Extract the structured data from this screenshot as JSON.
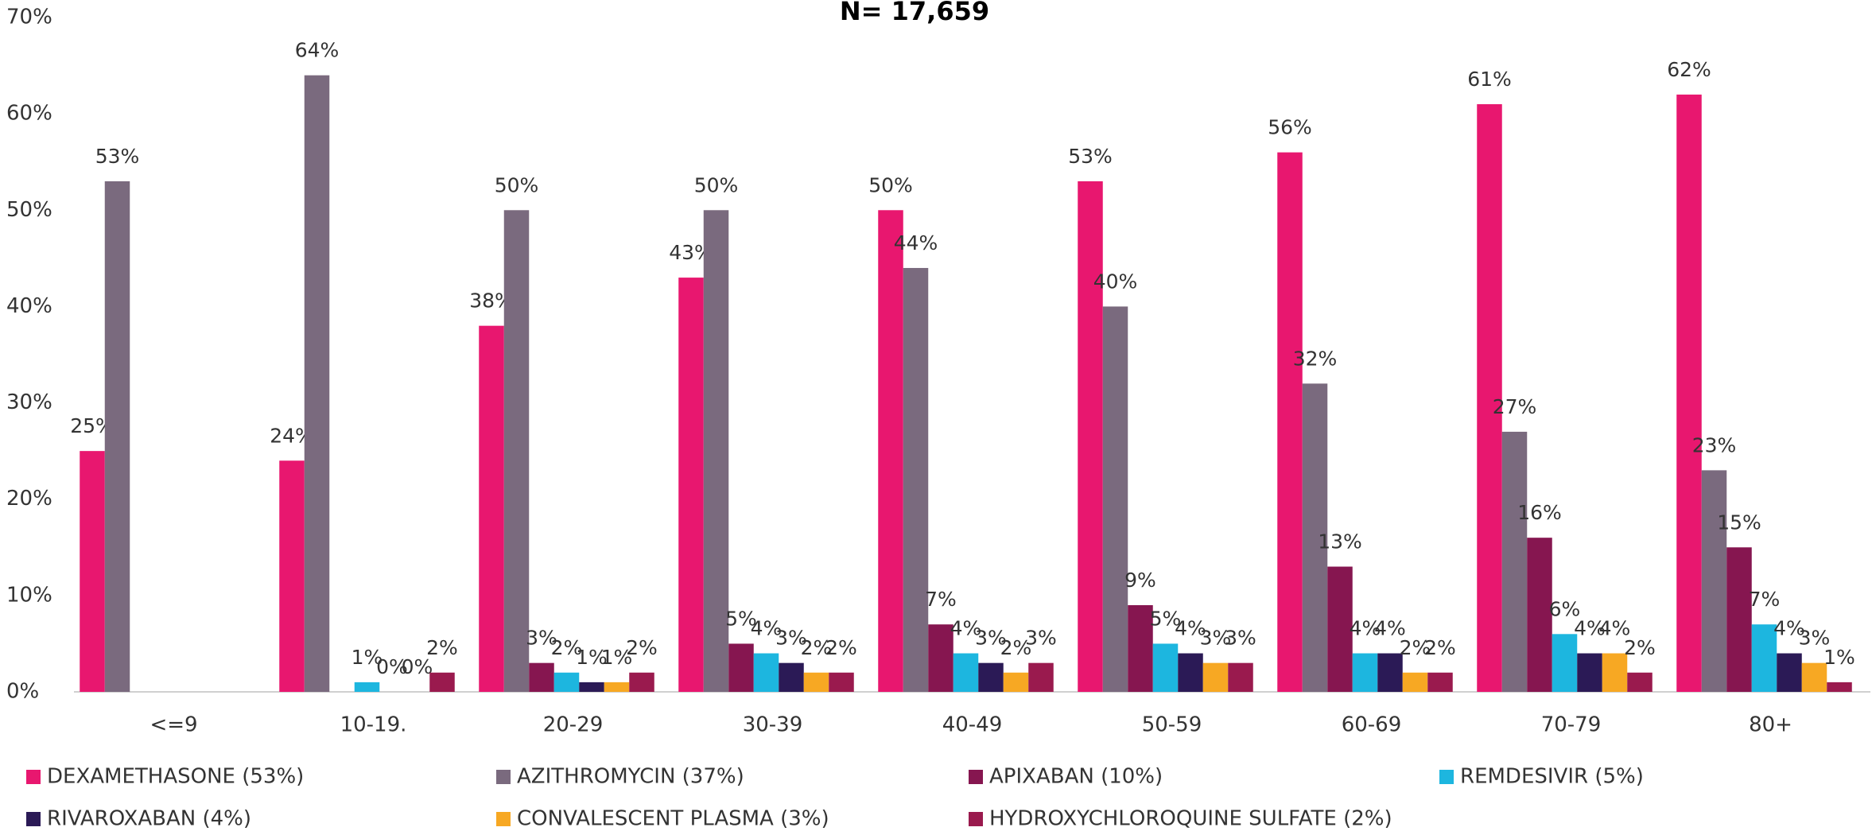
{
  "chart_data": {
    "type": "bar",
    "title": "N= 17,659",
    "categories": [
      "<=9",
      "10-19.",
      "20-29",
      "30-39",
      "40-49",
      "50-59",
      "60-69",
      "70-79",
      "80+"
    ],
    "series": [
      {
        "name": "DEXAMETHASONE (53%)",
        "color": "#e8176f",
        "values": [
          25,
          24,
          38,
          43,
          50,
          53,
          56,
          61,
          62
        ],
        "value_labels": [
          "25%",
          "24%",
          "38%",
          "43%",
          "50%",
          "53%",
          "56%",
          "61%",
          "62%"
        ]
      },
      {
        "name": "AZITHROMYCIN (37%)",
        "color": "#7a6a7e",
        "values": [
          53,
          64,
          50,
          50,
          44,
          40,
          32,
          27,
          23
        ],
        "value_labels": [
          "53%",
          "64%",
          "50%",
          "50%",
          "44%",
          "40%",
          "32%",
          "27%",
          "23%"
        ]
      },
      {
        "name": "APIXABAN (10%)",
        "color": "#861650",
        "values": [
          null,
          null,
          3,
          5,
          7,
          9,
          13,
          16,
          15
        ],
        "value_labels": [
          null,
          null,
          "3%",
          "5%",
          "7%",
          "9%",
          "13%",
          "16%",
          "15%"
        ]
      },
      {
        "name": "REMDESIVIR (5%)",
        "color": "#1db6df",
        "values": [
          null,
          1,
          2,
          4,
          4,
          5,
          4,
          6,
          7
        ],
        "value_labels": [
          null,
          "1%",
          "2%",
          "4%",
          "4%",
          "5%",
          "4%",
          "6%",
          "7%"
        ]
      },
      {
        "name": "RIVAROXABAN (4%)",
        "color": "#2b1a56",
        "values": [
          null,
          0,
          1,
          3,
          3,
          4,
          4,
          4,
          4
        ],
        "value_labels": [
          null,
          "0%",
          "1%",
          "3%",
          "3%",
          "4%",
          "4%",
          "4%",
          "4%"
        ]
      },
      {
        "name": "CONVALESCENT PLASMA (3%)",
        "color": "#f7a823",
        "values": [
          null,
          0,
          1,
          2,
          2,
          3,
          2,
          4,
          3
        ],
        "value_labels": [
          null,
          "0%",
          "1%",
          "2%",
          "2%",
          "3%",
          "2%",
          "4%",
          "3%"
        ]
      },
      {
        "name": "HYDROXYCHLOROQUINE SULFATE (2%)",
        "color": "#9a1a4e",
        "values": [
          null,
          2,
          2,
          2,
          3,
          3,
          2,
          2,
          1
        ],
        "value_labels": [
          null,
          "2%",
          "2%",
          "2%",
          "3%",
          "3%",
          "2%",
          "2%",
          "1%"
        ]
      }
    ],
    "ylim": [
      0,
      70
    ],
    "yticks": [
      {
        "value": 0,
        "label": "0%"
      },
      {
        "value": 10,
        "label": "10%"
      },
      {
        "value": 20,
        "label": "20%"
      },
      {
        "value": 30,
        "label": "30%"
      },
      {
        "value": 40,
        "label": "40%"
      },
      {
        "value": 50,
        "label": "50%"
      },
      {
        "value": 60,
        "label": "60%"
      },
      {
        "value": 70,
        "label": "70%"
      }
    ],
    "legend": "bottom"
  }
}
